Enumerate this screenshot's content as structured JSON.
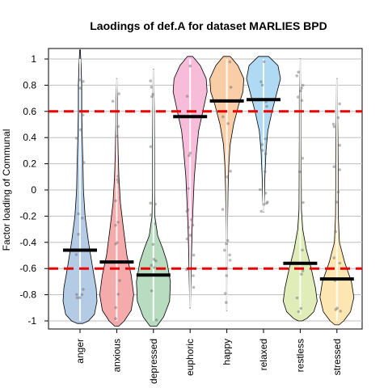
{
  "chart_data": {
    "type": "violin",
    "title": "Laodings of def.A for dataset MARLIES BPD",
    "xlabel": "",
    "ylabel": "Factor loading of Communal",
    "ylim": [
      -1.07,
      1.07
    ],
    "yticks": [
      1,
      0.8,
      0.6,
      0.4,
      0.2,
      0,
      -0.2,
      -0.4,
      -0.6,
      -0.8,
      -1
    ],
    "grid": true,
    "reference_lines": [
      {
        "value": 0.6,
        "color": "#ee0000",
        "style": "dashed"
      },
      {
        "value": -0.6,
        "color": "#ee0000",
        "style": "dashed"
      }
    ],
    "categories": [
      "anger",
      "anxious",
      "depressed",
      "euphoric",
      "happy",
      "relaxed",
      "restless",
      "stressed"
    ],
    "colors": [
      "#b4cbe6",
      "#f5aaab",
      "#b7dcc0",
      "#f7bcda",
      "#f9cda5",
      "#b0daf4",
      "#e1edb9",
      "#fde6b2"
    ],
    "means": [
      -0.46,
      -0.55,
      -0.65,
      0.56,
      0.68,
      0.69,
      -0.56,
      -0.68
    ],
    "ranges": [
      [
        -1.0,
        1.07
      ],
      [
        -1.0,
        0.85
      ],
      [
        -1.0,
        0.92
      ],
      [
        -0.9,
        1.0
      ],
      [
        -0.92,
        1.0
      ],
      [
        -0.17,
        1.0
      ],
      [
        -0.95,
        1.0
      ],
      [
        -1.0,
        0.85
      ]
    ]
  }
}
